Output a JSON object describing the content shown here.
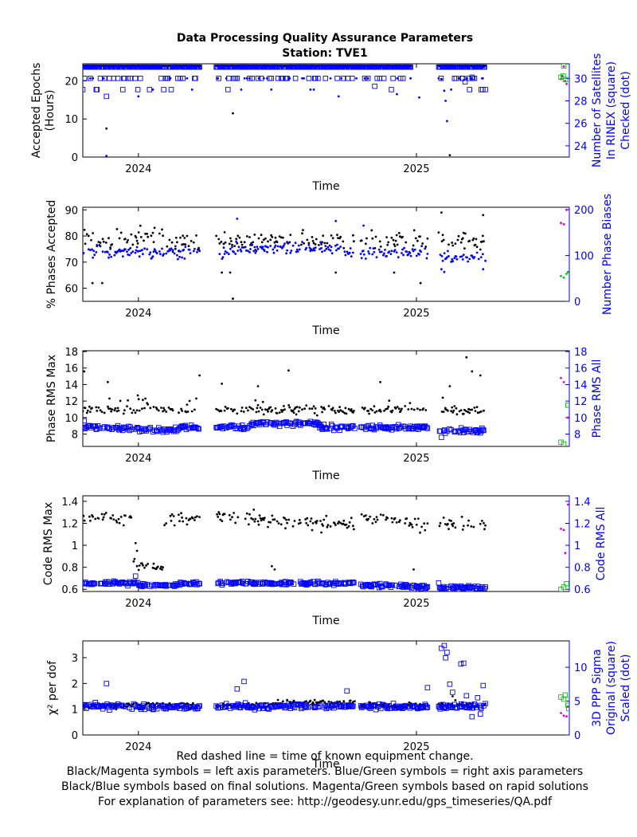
{
  "title_line1": "Data Processing Quality Assurance Parameters",
  "title_line2": "Station: TVE1",
  "footer": [
    "Red dashed line = time of known equipment change.",
    "Black/Magenta symbols = left axis parameters. Blue/Green symbols = right axis parameters",
    "Black/Blue symbols based on final solutions.  Magenta/Green symbols based on rapid solutions",
    "For explanation of parameters see: http://geodesy.unr.edu/gps_timeseries/QA.pdf"
  ],
  "colors": {
    "left": "#000000",
    "right": "#0000ff",
    "rapid_left": "#e000e0",
    "rapid_right": "#00c000"
  },
  "chart_data": [
    {
      "type": "scatter",
      "xlabel": "Time",
      "xticks": [
        {
          "value": 2024.0,
          "label": "2024"
        },
        {
          "value": 2025.0,
          "label": "2025"
        }
      ],
      "xlim": [
        2023.8,
        2025.55
      ],
      "ylabel_lines": [
        "Accepted Epochs",
        "(Hours)"
      ],
      "ylim": [
        0,
        24.5
      ],
      "yticks": [
        0,
        10,
        20
      ],
      "y2label_lines": [
        "Number of Satellites",
        "In RINEX (square)",
        "Checked (dot)"
      ],
      "y2lim": [
        23,
        31.3
      ],
      "y2ticks": [
        24,
        26,
        28,
        30
      ],
      "series": [
        {
          "axis": "left",
          "marker": "dot",
          "color": "left",
          "generator": "epochs",
          "base": 24,
          "sd": 0.05,
          "segments": [
            [
              2023.8,
              2024.22
            ],
            [
              2024.28,
              2024.98
            ],
            [
              2025.08,
              2025.25
            ]
          ],
          "outliers": [
            [
              2023.885,
              7.5
            ],
            [
              2023.885,
              0.1
            ],
            [
              2024.34,
              11.5
            ],
            [
              2025.12,
              0.5
            ],
            [
              2025.09,
              20.5
            ]
          ]
        },
        {
          "axis": "right",
          "marker": "square",
          "color": "right",
          "generator": "sats_sq",
          "base": 31,
          "alt": 30,
          "sd": 0,
          "segments": [
            [
              2023.8,
              2024.22
            ],
            [
              2024.28,
              2024.98
            ],
            [
              2025.08,
              2025.25
            ]
          ],
          "outliers": [
            [
              2023.885,
              28.4
            ],
            [
              2024.85,
              29.3
            ],
            [
              2025.2,
              30.1
            ],
            [
              2025.175,
              29.7
            ]
          ]
        },
        {
          "axis": "right",
          "marker": "dot",
          "color": "right",
          "generator": "sats_dot",
          "base": 31,
          "alt": 30,
          "sd": 0,
          "segments": [
            [
              2023.8,
              2024.22
            ],
            [
              2024.28,
              2024.98
            ],
            [
              2025.08,
              2025.25
            ]
          ],
          "outliers": [
            [
              2023.885,
              23.1
            ],
            [
              2025.11,
              26.2
            ],
            [
              2025.1,
              28.9
            ],
            [
              2025.105,
              28.0
            ],
            [
              2024.0,
              28.4
            ],
            [
              2024.72,
              28.4
            ],
            [
              2024.93,
              28.6
            ],
            [
              2025.01,
              28.3
            ]
          ]
        },
        {
          "axis": "left",
          "marker": "dot",
          "color": "rapid_left",
          "rapid": true,
          "points": [
            [
              2025.52,
              20.5
            ],
            [
              2025.525,
              21.2
            ],
            [
              2025.535,
              20.0
            ],
            [
              2025.53,
              23.8
            ],
            [
              2025.54,
              19.2
            ]
          ]
        },
        {
          "axis": "right",
          "marker": "square",
          "color": "rapid_right",
          "rapid": true,
          "points": [
            [
              2025.52,
              30.1
            ],
            [
              2025.528,
              30.2
            ],
            [
              2025.536,
              29.9
            ],
            [
              2025.53,
              31.1
            ]
          ]
        }
      ]
    },
    {
      "type": "scatter",
      "xlabel": "Time",
      "xticks": [
        {
          "value": 2024.0,
          "label": "2024"
        },
        {
          "value": 2025.0,
          "label": "2025"
        }
      ],
      "xlim": [
        2023.8,
        2025.55
      ],
      "ylabel_lines": [
        "% Phases Accepted"
      ],
      "ylim": [
        55,
        91
      ],
      "yticks": [
        60,
        70,
        80,
        90
      ],
      "y2label_lines": [
        "Number Phase Biases"
      ],
      "y2lim": [
        0,
        205
      ],
      "y2ticks": [
        0,
        100,
        200
      ],
      "series": [
        {
          "axis": "left",
          "marker": "dot",
          "color": "left",
          "generator": "pct",
          "base": 78,
          "sd": 2.8,
          "segments": [
            [
              2023.8,
              2024.22
            ],
            [
              2024.28,
              2024.78
            ],
            [
              2024.8,
              2025.04
            ],
            [
              2025.08,
              2025.25
            ]
          ],
          "outliers": [
            [
              2023.835,
              62
            ],
            [
              2023.87,
              62
            ],
            [
              2024.34,
              56
            ],
            [
              2024.3,
              66
            ],
            [
              2024.33,
              66
            ],
            [
              2024.71,
              66
            ],
            [
              2024.92,
              66
            ],
            [
              2025.015,
              62
            ],
            [
              2025.09,
              89
            ],
            [
              2025.24,
              88
            ]
          ]
        },
        {
          "axis": "right",
          "marker": "dot",
          "color": "right",
          "generator": "bias",
          "base": 107,
          "sd": 9,
          "segments": [
            [
              2023.8,
              2024.22
            ],
            [
              2024.28,
              2024.78
            ],
            [
              2024.8,
              2025.04
            ],
            [
              2025.08,
              2025.25
            ]
          ],
          "outliers": [
            [
              2024.355,
              180
            ],
            [
              2024.71,
              175
            ],
            [
              2024.81,
              165
            ],
            [
              2025.09,
              70
            ],
            [
              2025.1,
              64
            ],
            [
              2025.24,
              70
            ]
          ]
        },
        {
          "axis": "left",
          "marker": "dot",
          "color": "rapid_left",
          "rapid": true,
          "points": [
            [
              2025.52,
              85
            ],
            [
              2025.53,
              84.5
            ],
            [
              2025.54,
              90
            ]
          ]
        },
        {
          "axis": "right",
          "marker": "dot",
          "color": "rapid_right",
          "rapid": true,
          "points": [
            [
              2025.52,
              55
            ],
            [
              2025.53,
              52
            ],
            [
              2025.54,
              60
            ],
            [
              2025.545,
              64
            ]
          ]
        }
      ]
    },
    {
      "type": "scatter",
      "xlabel": "Time",
      "xticks": [
        {
          "value": 2024.0,
          "label": "2024"
        },
        {
          "value": 2025.0,
          "label": "2025"
        }
      ],
      "xlim": [
        2023.8,
        2025.55
      ],
      "ylabel_lines": [
        "Phase RMS Max"
      ],
      "ylim": [
        6.5,
        18.1
      ],
      "yticks": [
        8,
        10,
        12,
        14,
        16,
        18
      ],
      "y2label_lines": [
        "Phase RMS All"
      ],
      "y2lim": [
        6.5,
        18.1
      ],
      "y2ticks": [
        8,
        10,
        12,
        14,
        16,
        18
      ],
      "series": [
        {
          "axis": "left",
          "marker": "dot",
          "color": "left",
          "generator": "rmsmax",
          "base": 10.9,
          "sd": 0.5,
          "segments": [
            [
              2023.8,
              2024.22
            ],
            [
              2024.28,
              2024.78
            ],
            [
              2024.8,
              2025.04
            ],
            [
              2025.08,
              2025.25
            ]
          ],
          "outliers": [
            [
              2023.805,
              15.6
            ],
            [
              2023.89,
              14.3
            ],
            [
              2024.22,
              15.1
            ],
            [
              2024.3,
              14.1
            ],
            [
              2024.54,
              15.7
            ],
            [
              2024.43,
              13.8
            ],
            [
              2024.87,
              14.3
            ],
            [
              2025.12,
              13.8
            ],
            [
              2025.18,
              17.3
            ],
            [
              2025.2,
              15.6
            ],
            [
              2025.23,
              15.1
            ],
            [
              2025.105,
              11.0
            ]
          ]
        },
        {
          "axis": "right",
          "marker": "square",
          "color": "right",
          "generator": "rmsall",
          "base": 8.8,
          "sd": 0.22,
          "segments": [
            [
              2023.8,
              2024.22
            ],
            [
              2024.28,
              2024.78
            ],
            [
              2024.8,
              2025.04
            ],
            [
              2025.08,
              2025.25
            ]
          ],
          "outliers": [
            [
              2023.805,
              9.6
            ],
            [
              2025.09,
              7.6
            ]
          ]
        },
        {
          "axis": "left",
          "marker": "dot",
          "color": "rapid_left",
          "rapid": true,
          "points": [
            [
              2025.52,
              14.8
            ],
            [
              2025.53,
              14.3
            ],
            [
              2025.545,
              10.0
            ]
          ]
        },
        {
          "axis": "right",
          "marker": "square",
          "color": "rapid_right",
          "rapid": true,
          "points": [
            [
              2025.52,
              7.0
            ],
            [
              2025.53,
              6.8
            ],
            [
              2025.545,
              11.5
            ]
          ]
        }
      ]
    },
    {
      "type": "scatter",
      "xlabel": "Time",
      "xticks": [
        {
          "value": 2024.0,
          "label": "2024"
        },
        {
          "value": 2025.0,
          "label": "2025"
        }
      ],
      "xlim": [
        2023.8,
        2025.55
      ],
      "ylabel_lines": [
        "Code RMS Max"
      ],
      "ylim": [
        0.58,
        1.45
      ],
      "yticks": [
        0.6,
        0.8,
        1.0,
        1.2,
        1.4
      ],
      "ytick_labels": [
        "0.6",
        "0.8",
        "1",
        "1.2",
        "1.4"
      ],
      "y2label_lines": [
        "Code RMS All"
      ],
      "y2lim": [
        0.58,
        1.45
      ],
      "y2ticks": [
        0.6,
        0.8,
        1.0,
        1.2,
        1.4
      ],
      "y2tick_labels": [
        "0.6",
        "0.8",
        "1",
        "1.2",
        "1.4"
      ],
      "series": [
        {
          "axis": "left",
          "marker": "dot",
          "color": "left",
          "generator": "codemax",
          "base": 1.24,
          "sd": 0.04,
          "segments": [
            [
              2023.8,
              2024.22
            ],
            [
              2024.28,
              2024.78
            ],
            [
              2024.8,
              2025.04
            ],
            [
              2025.08,
              2025.25
            ]
          ],
          "outliers": [
            [
              2024.48,
              0.81
            ],
            [
              2024.49,
              0.78
            ],
            [
              2024.99,
              0.78
            ],
            [
              2023.99,
              1.02
            ],
            [
              2023.995,
              0.95
            ]
          ]
        },
        {
          "axis": "right",
          "marker": "square",
          "color": "right",
          "generator": "codeall",
          "base": 0.655,
          "sd": 0.012,
          "segments": [
            [
              2023.8,
              2024.22
            ],
            [
              2024.28,
              2024.78
            ],
            [
              2024.8,
              2025.04
            ],
            [
              2025.08,
              2025.25
            ]
          ],
          "outliers": [
            [
              2023.99,
              0.72
            ]
          ]
        },
        {
          "axis": "left",
          "marker": "dot",
          "color": "rapid_left",
          "rapid": true,
          "points": [
            [
              2025.52,
              1.15
            ],
            [
              2025.53,
              1.14
            ],
            [
              2025.545,
              1.37
            ],
            [
              2025.535,
              0.93
            ]
          ]
        },
        {
          "axis": "right",
          "marker": "square",
          "color": "rapid_right",
          "rapid": true,
          "points": [
            [
              2025.52,
              0.6
            ],
            [
              2025.53,
              0.62
            ],
            [
              2025.54,
              0.65
            ]
          ]
        }
      ]
    },
    {
      "type": "scatter",
      "xlabel": "Time",
      "xticks": [
        {
          "value": 2024.0,
          "label": "2024"
        },
        {
          "value": 2025.0,
          "label": "2025"
        }
      ],
      "xlim": [
        2023.8,
        2025.55
      ],
      "ylabel": "χ² per dof",
      "ylim": [
        0,
        3.65
      ],
      "yticks": [
        0,
        1,
        2,
        3
      ],
      "y2label_lines": [
        "3D PPP Sigma",
        "Original (square)",
        "Scaled (dot)"
      ],
      "y2lim": [
        0,
        13.9
      ],
      "y2ticks": [
        0,
        5,
        10
      ],
      "series": [
        {
          "axis": "left",
          "marker": "dot",
          "color": "left",
          "generator": "chi",
          "base": 1.15,
          "sd": 0.08,
          "segments": [
            [
              2023.8,
              2024.22
            ],
            [
              2024.28,
              2024.78
            ],
            [
              2024.8,
              2025.04
            ],
            [
              2025.08,
              2025.25
            ]
          ],
          "outliers": [
            [
              2025.13,
              1.5
            ],
            [
              2025.14,
              1.35
            ]
          ]
        },
        {
          "axis": "right",
          "marker": "square",
          "color": "right",
          "generator": "sig",
          "base": 4.2,
          "sd": 0.3,
          "segments": [
            [
              2023.8,
              2024.22
            ],
            [
              2024.28,
              2024.78
            ],
            [
              2024.8,
              2025.04
            ],
            [
              2025.08,
              2025.25
            ]
          ],
          "outliers": [
            [
              2023.885,
              7.6
            ],
            [
              2024.38,
              7.9
            ],
            [
              2024.355,
              6.8
            ],
            [
              2024.75,
              6.5
            ],
            [
              2025.04,
              7.0
            ],
            [
              2025.09,
              12.8
            ],
            [
              2025.1,
              13.2
            ],
            [
              2025.105,
              11.4
            ],
            [
              2025.11,
              12.2
            ],
            [
              2025.16,
              10.5
            ],
            [
              2025.17,
              10.6
            ],
            [
              2025.12,
              7.5
            ],
            [
              2025.13,
              6.3
            ],
            [
              2025.18,
              5.8
            ],
            [
              2025.24,
              7.3
            ],
            [
              2025.22,
              5.5
            ],
            [
              2025.2,
              2.7
            ],
            [
              2025.23,
              3.1
            ]
          ]
        },
        {
          "axis": "left",
          "marker": "dot",
          "color": "rapid_left",
          "rapid": true,
          "points": [
            [
              2025.52,
              0.85
            ],
            [
              2025.53,
              0.75
            ],
            [
              2025.54,
              0.72
            ],
            [
              2025.545,
              1.1
            ]
          ]
        },
        {
          "axis": "right",
          "marker": "square",
          "color": "rapid_right",
          "rapid": true,
          "points": [
            [
              2025.52,
              5.6
            ],
            [
              2025.53,
              5.3
            ],
            [
              2025.535,
              5.9
            ],
            [
              2025.545,
              4.4
            ],
            [
              2025.548,
              3.9
            ]
          ]
        }
      ]
    }
  ]
}
